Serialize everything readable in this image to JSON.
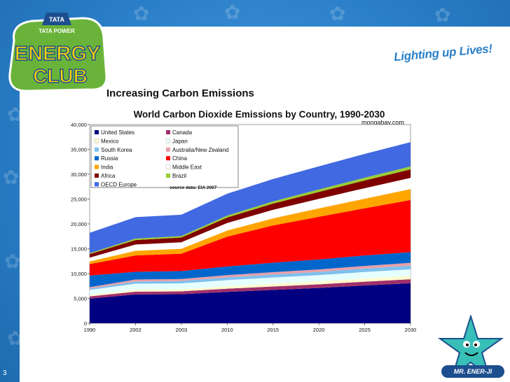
{
  "slide": {
    "title": "Increasing Carbon Emissions",
    "tagline": "Lighting up Lives!",
    "logo_brand": "TATA",
    "logo_company": "TATA POWER",
    "logo_line1": "ENERGY",
    "logo_line2": "CLUB",
    "mascot_label": "MR. ENER-JI",
    "slide_number": "3"
  },
  "colors": {
    "background": "#2a7fc8",
    "accent": "#2a7fc8"
  },
  "chart_data": {
    "type": "area",
    "stacked": true,
    "title": "World Carbon Dioxide Emissions by Country, 1990-2030",
    "source_label": "mongabay.com",
    "source_note": "source data: EIA 2007",
    "x": [
      "1990",
      "2002",
      "2003",
      "2010",
      "2015",
      "2020",
      "2025",
      "2030"
    ],
    "ylim": [
      0,
      40000
    ],
    "yticks": [
      "0",
      "5,000",
      "10,000",
      "15,000",
      "20,000",
      "25,000",
      "30,000",
      "35,000",
      "40,000"
    ],
    "series": [
      {
        "name": "United States",
        "color": "#000080",
        "values": [
          4950,
          5800,
          5850,
          6300,
          6700,
          7100,
          7600,
          8050
        ]
      },
      {
        "name": "Canada",
        "color": "#a0306a",
        "values": [
          450,
          550,
          570,
          650,
          700,
          730,
          760,
          800
        ]
      },
      {
        "name": "Mexico",
        "color": "#fffacd",
        "values": [
          300,
          400,
          400,
          480,
          550,
          600,
          650,
          700
        ]
      },
      {
        "name": "Japan",
        "color": "#e6ffff",
        "values": [
          1000,
          1200,
          1200,
          1250,
          1250,
          1250,
          1300,
          1300
        ]
      },
      {
        "name": "South Korea",
        "color": "#7ec0ee",
        "values": [
          250,
          450,
          480,
          550,
          600,
          650,
          700,
          750
        ]
      },
      {
        "name": "Australia/New Zealand",
        "color": "#e8a0a8",
        "values": [
          300,
          400,
          400,
          450,
          480,
          500,
          530,
          560
        ]
      },
      {
        "name": "Russia",
        "color": "#0066cc",
        "values": [
          2350,
          1550,
          1600,
          1750,
          1900,
          2000,
          2100,
          2150
        ]
      },
      {
        "name": "China",
        "color": "#ff0000",
        "values": [
          2300,
          3300,
          3500,
          6000,
          7500,
          8600,
          9500,
          10500
        ]
      },
      {
        "name": "India",
        "color": "#ffa500",
        "values": [
          600,
          1000,
          1050,
          1300,
          1500,
          1750,
          2000,
          2250
        ]
      },
      {
        "name": "Middle East",
        "color": "#ffffff",
        "values": [
          700,
          1200,
          1250,
          1450,
          1650,
          1850,
          2050,
          2200
        ]
      },
      {
        "name": "Africa",
        "color": "#800000",
        "values": [
          700,
          900,
          950,
          1100,
          1250,
          1400,
          1550,
          1700
        ]
      },
      {
        "name": "Brazil",
        "color": "#9acd32",
        "values": [
          200,
          300,
          300,
          400,
          450,
          500,
          550,
          600
        ]
      },
      {
        "name": "OECD Europe",
        "color": "#4169e1",
        "values": [
          4100,
          4300,
          4300,
          4400,
          4500,
          4650,
          4800,
          4900
        ]
      }
    ],
    "legend_placement": "top-left"
  }
}
